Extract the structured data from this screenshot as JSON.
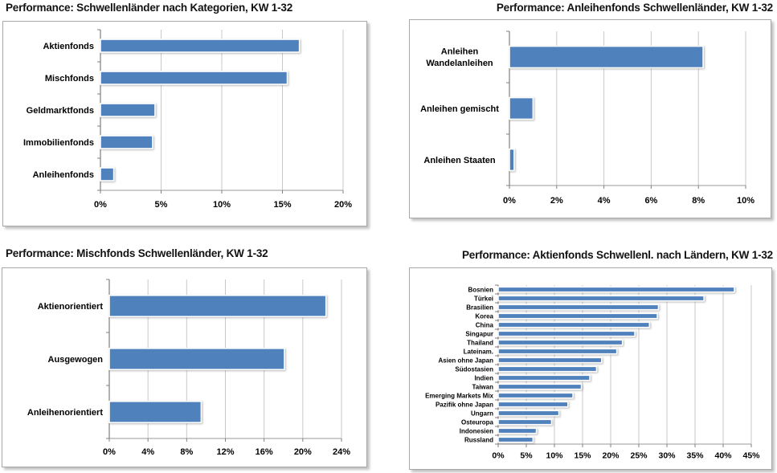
{
  "page": {
    "background": "#ffffff"
  },
  "chart_data": [
    {
      "type": "bar",
      "orientation": "horizontal",
      "title": "Performance: Schwellenländer nach Kategorien, KW 1-32",
      "title_align": "left",
      "categories": [
        "Aktienfonds",
        "Mischfonds",
        "Geldmarktfonds",
        "Immobilienfonds",
        "Anleihenfonds"
      ],
      "values": [
        16.4,
        15.4,
        4.5,
        4.3,
        1.1
      ],
      "xlabel": "",
      "ylabel": "",
      "xlim": [
        0,
        20
      ],
      "xticks": [
        0,
        5,
        10,
        15,
        20
      ],
      "xtick_labels": [
        "0%",
        "5%",
        "10%",
        "15%",
        "20%"
      ],
      "grid": true,
      "legend": false,
      "bar_color": "#4f81bd"
    },
    {
      "type": "bar",
      "orientation": "horizontal",
      "title": "Performance: Anleihenfonds Schwellenländer, KW 1-32",
      "title_align": "right",
      "categories": [
        "Anleihen Wandelanleihen",
        "Anleihen gemischt",
        "Anleihen Staaten"
      ],
      "category_lines": [
        [
          "Anleihen",
          "Wandelanleihen"
        ],
        [
          "Anleihen gemischt"
        ],
        [
          "Anleihen Staaten"
        ]
      ],
      "values": [
        8.2,
        1.0,
        0.2
      ],
      "xlabel": "",
      "ylabel": "",
      "xlim": [
        0,
        10
      ],
      "xticks": [
        0,
        2,
        4,
        6,
        8,
        10
      ],
      "xtick_labels": [
        "0%",
        "2%",
        "4%",
        "6%",
        "8%",
        "10%"
      ],
      "grid": true,
      "legend": false,
      "bar_color": "#4f81bd"
    },
    {
      "type": "bar",
      "orientation": "horizontal",
      "title": "Performance: Mischfonds Schwellenländer, KW 1-32",
      "title_align": "left",
      "categories": [
        "Aktienorientiert",
        "Ausgewogen",
        "Anleihenorientiert"
      ],
      "values": [
        22.4,
        18.1,
        9.5
      ],
      "xlabel": "",
      "ylabel": "",
      "xlim": [
        0,
        24
      ],
      "xticks": [
        0,
        4,
        8,
        12,
        16,
        20,
        24
      ],
      "xtick_labels": [
        "0%",
        "4%",
        "8%",
        "12%",
        "16%",
        "20%",
        "24%"
      ],
      "grid": true,
      "legend": false,
      "bar_color": "#4f81bd"
    },
    {
      "type": "bar",
      "orientation": "horizontal",
      "title": "Performance: Aktienfonds Schwellenl. nach Ländern, KW 1-32",
      "title_align": "right",
      "categories": [
        "Bosnien",
        "Türkei",
        "Brasilien",
        "Korea",
        "China",
        "Singapur",
        "Thailand",
        "Lateinam.",
        "Asien ohne Japan",
        "Südostasien",
        "Indien",
        "Taiwan",
        "Emerging Markets Mix",
        "Pazifik ohne Japan",
        "Ungarn",
        "Osteuropa",
        "Indonesien",
        "Russland"
      ],
      "values": [
        42.0,
        36.6,
        28.5,
        28.3,
        26.9,
        24.3,
        22.1,
        21.1,
        18.4,
        17.5,
        16.3,
        14.8,
        13.3,
        12.4,
        10.8,
        9.5,
        6.8,
        6.2
      ],
      "xlabel": "",
      "ylabel": "",
      "xlim": [
        0,
        45
      ],
      "xticks": [
        0,
        5,
        10,
        15,
        20,
        25,
        30,
        35,
        40,
        45
      ],
      "xtick_labels": [
        "0%",
        "5%",
        "10%",
        "15%",
        "20%",
        "25%",
        "30%",
        "35%",
        "40%",
        "45%"
      ],
      "grid": true,
      "legend": false,
      "bar_color": "#4f81bd"
    }
  ]
}
